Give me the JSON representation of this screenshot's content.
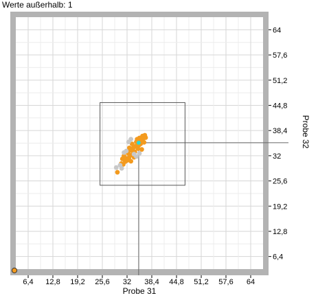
{
  "header": {
    "outliers_label": "Werte außerhalb: 1"
  },
  "chart_data": {
    "type": "scatter",
    "xlabel": "Probe 31",
    "ylabel": "Probe 32",
    "xlim": [
      3.2,
      67.2
    ],
    "ylim": [
      3.2,
      67.2
    ],
    "x_ticks": [
      "6,4",
      "12,8",
      "19,2",
      "25,6",
      "32",
      "38,4",
      "44,8",
      "51,2",
      "57,6",
      "64"
    ],
    "y_ticks": [
      "6,4",
      "12,8",
      "19,2",
      "25,6",
      "32",
      "38,4",
      "44,8",
      "51,2",
      "57,6",
      "64"
    ],
    "grid": true,
    "colors": {
      "primary": "#f39a1e",
      "secondary": "#c8c8c8",
      "selected": "#2ed8d8",
      "frame": "#b3b3b3"
    },
    "zoom_box": {
      "x": [
        25.0,
        47.0
      ],
      "y": [
        24.5,
        45.5
      ]
    },
    "selected_point": {
      "x": 35.0,
      "y": 35.3
    },
    "outlier_point": {
      "x": 3.2,
      "y": 3.2
    },
    "series": [
      {
        "role": "primary",
        "points": [
          [
            29.5,
            27.8
          ],
          [
            30.5,
            30.0
          ],
          [
            31.0,
            29.8
          ],
          [
            31.5,
            30.5
          ],
          [
            31.8,
            31.3
          ],
          [
            30.8,
            31.2
          ],
          [
            31.2,
            32.0
          ],
          [
            32.0,
            30.8
          ],
          [
            32.5,
            31.5
          ],
          [
            33.0,
            30.6
          ],
          [
            32.3,
            32.6
          ],
          [
            33.2,
            32.2
          ],
          [
            32.8,
            33.4
          ],
          [
            33.5,
            33.2
          ],
          [
            34.0,
            33.0
          ],
          [
            33.6,
            34.0
          ],
          [
            34.2,
            34.4
          ],
          [
            34.8,
            33.8
          ],
          [
            33.3,
            35.0
          ],
          [
            34.4,
            35.5
          ],
          [
            35.0,
            34.6
          ],
          [
            35.5,
            35.0
          ],
          [
            34.6,
            36.2
          ],
          [
            35.2,
            36.5
          ],
          [
            35.8,
            36.0
          ],
          [
            36.2,
            36.4
          ],
          [
            36.0,
            37.0
          ],
          [
            36.6,
            37.2
          ],
          [
            35.8,
            33.6
          ],
          [
            36.4,
            35.4
          ],
          [
            32.6,
            34.0
          ],
          [
            33.8,
            31.6
          ],
          [
            31.6,
            31.0
          ],
          [
            36.8,
            36.6
          ]
        ]
      },
      {
        "role": "secondary",
        "points": [
          [
            29.2,
            29.0
          ],
          [
            30.6,
            28.8
          ],
          [
            31.8,
            33.2
          ],
          [
            32.4,
            35.5
          ],
          [
            33.0,
            36.2
          ],
          [
            33.8,
            32.4
          ],
          [
            34.4,
            31.8
          ],
          [
            31.2,
            32.8
          ],
          [
            35.2,
            32.6
          ],
          [
            30.2,
            29.6
          ]
        ]
      }
    ]
  }
}
